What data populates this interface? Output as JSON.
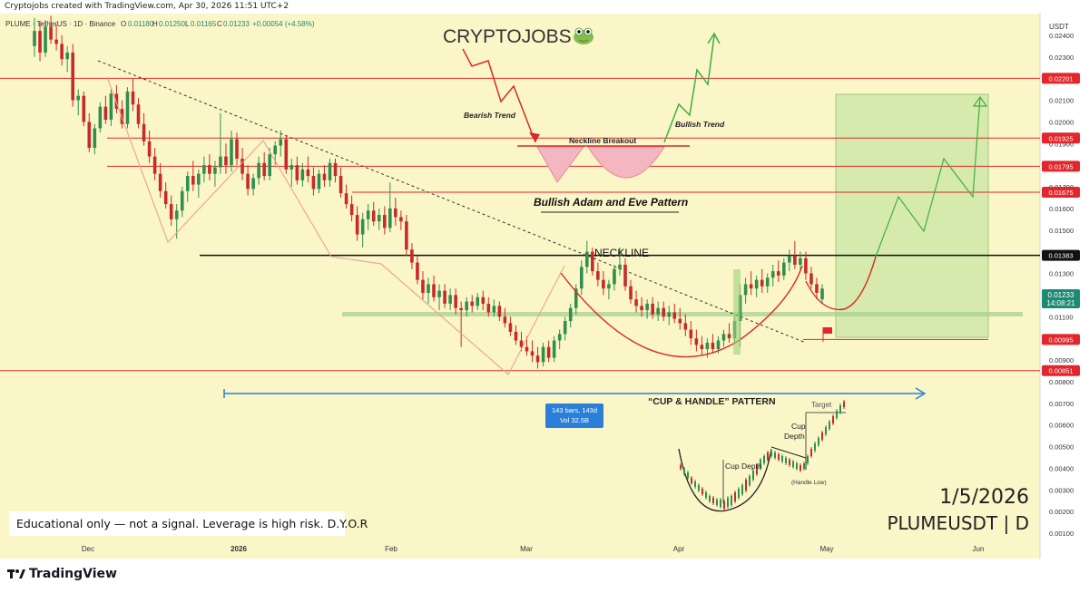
{
  "top_caption": "Cryptojobs created with TradingView.com, Apr 30, 2026 11:51 UTC+2",
  "symbol_line": "PLUME · TetherUS · 1D · Binance",
  "ohlc": {
    "o_label": "O",
    "o": "0.01180",
    "h_label": "H",
    "h": "0.01250",
    "l_label": "L",
    "l": "0.01165",
    "c_label": "C",
    "c": "0.01233",
    "change": "+0.00054 (+4.58%)"
  },
  "currency": "USDT",
  "brand_title": "CRYPTOJOBS",
  "brand_icon": "frog-icon",
  "bottom_date": "1/5/2026",
  "bottom_pair": "PLUMEUSDT | D",
  "disclaimer": "Educational only — not a signal. Leverage is high risk. D.Y.O.R",
  "tradingview_logo": "TradingView",
  "colors": {
    "background": "#fbf6c8",
    "resistance": "#d92a2a",
    "neckline": "#111111",
    "support_band": "#a4cf8c",
    "bull_candle": "#2f8f4f",
    "bear_candle": "#c82a2a",
    "measure": "#2b7fd9",
    "target_box": "#cfe8a8",
    "current_price": "#1d8a73",
    "axis_label_red": "#e2262b"
  },
  "chart_data": {
    "type": "candlestick",
    "symbol": "PLUMEUSDT",
    "timeframe": "1D",
    "x_tick_labels": [
      "Dec",
      "2026",
      "Feb",
      "Mar",
      "Apr",
      "May",
      "Jun"
    ],
    "y_tick_labels": [
      "0.02400",
      "0.02300",
      "0.02200",
      "0.02100",
      "0.02000",
      "0.01900",
      "0.01800",
      "0.01700",
      "0.01600",
      "0.01500",
      "0.01400",
      "0.01300",
      "0.01200",
      "0.01100",
      "0.01000",
      "0.00900",
      "0.00800",
      "0.00700",
      "0.00600",
      "0.00500",
      "0.00400",
      "0.00300",
      "0.00200",
      "0.00100"
    ],
    "ylim": [
      0.0,
      0.025
    ],
    "levels": [
      {
        "label": "0.02201",
        "value": 0.02201,
        "color": "#e2262b"
      },
      {
        "label": "0.01925",
        "value": 0.01925,
        "color": "#e2262b"
      },
      {
        "label": "0.01795",
        "value": 0.01795,
        "color": "#e2262b"
      },
      {
        "label": "0.01675",
        "value": 0.01675,
        "color": "#e2262b"
      },
      {
        "label": "0.01383",
        "value": 0.01383,
        "color": "#111111"
      },
      {
        "label": "0.00995",
        "value": 0.00995,
        "color": "#e2262b"
      },
      {
        "label": "0.00851",
        "value": 0.00851,
        "color": "#e2262b"
      }
    ],
    "current_price": {
      "label": "0.01233",
      "countdown": "14:08:21",
      "value": 0.01233
    },
    "annotations": {
      "bearish_trend": "Bearish Trend",
      "bullish_trend": "Bullish Trend",
      "neckline_breakout": "Neckline Breakout",
      "pattern_name": "Bullish Adam and Eve Pattern",
      "neckline": "NECKLINE",
      "cup_handle": "“CUP & HANDLE” PATTERN",
      "measure_bars": "143 bars, 143d",
      "measure_vol": "Vol 32.5B",
      "inset_cup_depth": "Cup Depth",
      "inset_cup_depth2a": "Cup",
      "inset_cup_depth2b": "Depth",
      "inset_target": "Target",
      "inset_handle_low": "(Handle Low)"
    },
    "candles": [
      {
        "o": 0.0235,
        "h": 0.0248,
        "l": 0.023,
        "c": 0.0242
      },
      {
        "o": 0.0242,
        "h": 0.0246,
        "l": 0.0228,
        "c": 0.0232
      },
      {
        "o": 0.0232,
        "h": 0.0247,
        "l": 0.023,
        "c": 0.0244
      },
      {
        "o": 0.0244,
        "h": 0.0249,
        "l": 0.0236,
        "c": 0.0238
      },
      {
        "o": 0.0238,
        "h": 0.0245,
        "l": 0.0233,
        "c": 0.0236
      },
      {
        "o": 0.0236,
        "h": 0.024,
        "l": 0.0226,
        "c": 0.0229
      },
      {
        "o": 0.0229,
        "h": 0.0235,
        "l": 0.0223,
        "c": 0.0232
      },
      {
        "o": 0.0232,
        "h": 0.0236,
        "l": 0.0207,
        "c": 0.021
      },
      {
        "o": 0.021,
        "h": 0.0215,
        "l": 0.0203,
        "c": 0.0212
      },
      {
        "o": 0.0212,
        "h": 0.0214,
        "l": 0.0198,
        "c": 0.02
      },
      {
        "o": 0.02,
        "h": 0.0204,
        "l": 0.0186,
        "c": 0.0188
      },
      {
        "o": 0.0188,
        "h": 0.0199,
        "l": 0.0185,
        "c": 0.0197
      },
      {
        "o": 0.0197,
        "h": 0.0209,
        "l": 0.0195,
        "c": 0.0207
      },
      {
        "o": 0.0207,
        "h": 0.0212,
        "l": 0.0199,
        "c": 0.0201
      },
      {
        "o": 0.0201,
        "h": 0.0215,
        "l": 0.0198,
        "c": 0.0213
      },
      {
        "o": 0.0213,
        "h": 0.0217,
        "l": 0.0204,
        "c": 0.0206
      },
      {
        "o": 0.0206,
        "h": 0.021,
        "l": 0.0197,
        "c": 0.0199
      },
      {
        "o": 0.0199,
        "h": 0.0216,
        "l": 0.0197,
        "c": 0.0214
      },
      {
        "o": 0.0214,
        "h": 0.022,
        "l": 0.0205,
        "c": 0.0208
      },
      {
        "o": 0.0208,
        "h": 0.0211,
        "l": 0.0197,
        "c": 0.0199
      },
      {
        "o": 0.0199,
        "h": 0.0204,
        "l": 0.0189,
        "c": 0.0191
      },
      {
        "o": 0.0191,
        "h": 0.0196,
        "l": 0.0181,
        "c": 0.0184
      },
      {
        "o": 0.0184,
        "h": 0.0188,
        "l": 0.0173,
        "c": 0.0176
      },
      {
        "o": 0.0176,
        "h": 0.0181,
        "l": 0.0165,
        "c": 0.0168
      },
      {
        "o": 0.0168,
        "h": 0.0172,
        "l": 0.016,
        "c": 0.0162
      },
      {
        "o": 0.0162,
        "h": 0.0166,
        "l": 0.0152,
        "c": 0.0155
      },
      {
        "o": 0.0155,
        "h": 0.0162,
        "l": 0.0146,
        "c": 0.0159
      },
      {
        "o": 0.0159,
        "h": 0.017,
        "l": 0.0156,
        "c": 0.0168
      },
      {
        "o": 0.0168,
        "h": 0.0177,
        "l": 0.0163,
        "c": 0.0175
      },
      {
        "o": 0.0175,
        "h": 0.0182,
        "l": 0.0168,
        "c": 0.0171
      },
      {
        "o": 0.0171,
        "h": 0.0178,
        "l": 0.0165,
        "c": 0.0176
      },
      {
        "o": 0.0176,
        "h": 0.0184,
        "l": 0.0172,
        "c": 0.018
      },
      {
        "o": 0.018,
        "h": 0.0185,
        "l": 0.0173,
        "c": 0.0176
      },
      {
        "o": 0.0176,
        "h": 0.0182,
        "l": 0.017,
        "c": 0.0179
      },
      {
        "o": 0.0179,
        "h": 0.0204,
        "l": 0.0176,
        "c": 0.0184
      },
      {
        "o": 0.0184,
        "h": 0.019,
        "l": 0.0176,
        "c": 0.018
      },
      {
        "o": 0.018,
        "h": 0.0196,
        "l": 0.0177,
        "c": 0.0192
      },
      {
        "o": 0.0192,
        "h": 0.0195,
        "l": 0.018,
        "c": 0.0183
      },
      {
        "o": 0.0183,
        "h": 0.0188,
        "l": 0.0173,
        "c": 0.0176
      },
      {
        "o": 0.0176,
        "h": 0.018,
        "l": 0.0166,
        "c": 0.0169
      },
      {
        "o": 0.0169,
        "h": 0.0176,
        "l": 0.0166,
        "c": 0.0174
      },
      {
        "o": 0.0174,
        "h": 0.0184,
        "l": 0.0171,
        "c": 0.0181
      },
      {
        "o": 0.0181,
        "h": 0.0186,
        "l": 0.0173,
        "c": 0.0175
      },
      {
        "o": 0.0175,
        "h": 0.0188,
        "l": 0.0173,
        "c": 0.0185
      },
      {
        "o": 0.0185,
        "h": 0.0191,
        "l": 0.018,
        "c": 0.0189
      },
      {
        "o": 0.0189,
        "h": 0.0196,
        "l": 0.0184,
        "c": 0.0192
      },
      {
        "o": 0.0192,
        "h": 0.0194,
        "l": 0.0176,
        "c": 0.0178
      },
      {
        "o": 0.0178,
        "h": 0.0183,
        "l": 0.017,
        "c": 0.018
      },
      {
        "o": 0.018,
        "h": 0.0184,
        "l": 0.0171,
        "c": 0.0173
      },
      {
        "o": 0.0173,
        "h": 0.0181,
        "l": 0.017,
        "c": 0.0178
      },
      {
        "o": 0.0178,
        "h": 0.0184,
        "l": 0.0172,
        "c": 0.0175
      },
      {
        "o": 0.0175,
        "h": 0.0179,
        "l": 0.0166,
        "c": 0.0169
      },
      {
        "o": 0.0169,
        "h": 0.0178,
        "l": 0.0167,
        "c": 0.0176
      },
      {
        "o": 0.0176,
        "h": 0.018,
        "l": 0.017,
        "c": 0.0173
      },
      {
        "o": 0.0173,
        "h": 0.0183,
        "l": 0.017,
        "c": 0.0181
      },
      {
        "o": 0.0181,
        "h": 0.0183,
        "l": 0.0172,
        "c": 0.0175
      },
      {
        "o": 0.0175,
        "h": 0.0179,
        "l": 0.0165,
        "c": 0.0167
      },
      {
        "o": 0.0167,
        "h": 0.0171,
        "l": 0.016,
        "c": 0.0162
      },
      {
        "o": 0.0162,
        "h": 0.0166,
        "l": 0.0154,
        "c": 0.0157
      },
      {
        "o": 0.0157,
        "h": 0.0161,
        "l": 0.0145,
        "c": 0.0148
      },
      {
        "o": 0.0148,
        "h": 0.0158,
        "l": 0.0142,
        "c": 0.0155
      },
      {
        "o": 0.0155,
        "h": 0.0162,
        "l": 0.015,
        "c": 0.0159
      },
      {
        "o": 0.0159,
        "h": 0.0163,
        "l": 0.0152,
        "c": 0.0154
      },
      {
        "o": 0.0154,
        "h": 0.016,
        "l": 0.015,
        "c": 0.0157
      },
      {
        "o": 0.0157,
        "h": 0.0161,
        "l": 0.0148,
        "c": 0.0151
      },
      {
        "o": 0.0151,
        "h": 0.0172,
        "l": 0.0149,
        "c": 0.016
      },
      {
        "o": 0.016,
        "h": 0.0165,
        "l": 0.0152,
        "c": 0.0156
      },
      {
        "o": 0.0156,
        "h": 0.0159,
        "l": 0.015,
        "c": 0.0154
      },
      {
        "o": 0.0154,
        "h": 0.0157,
        "l": 0.0138,
        "c": 0.0141
      },
      {
        "o": 0.0141,
        "h": 0.0144,
        "l": 0.0132,
        "c": 0.0135
      },
      {
        "o": 0.0135,
        "h": 0.0138,
        "l": 0.0125,
        "c": 0.0127
      },
      {
        "o": 0.0127,
        "h": 0.0131,
        "l": 0.0118,
        "c": 0.0121
      },
      {
        "o": 0.0121,
        "h": 0.0128,
        "l": 0.0116,
        "c": 0.0125
      },
      {
        "o": 0.0125,
        "h": 0.0129,
        "l": 0.0117,
        "c": 0.0119
      },
      {
        "o": 0.0119,
        "h": 0.0125,
        "l": 0.0113,
        "c": 0.0122
      },
      {
        "o": 0.0122,
        "h": 0.0125,
        "l": 0.0114,
        "c": 0.0116
      },
      {
        "o": 0.0116,
        "h": 0.0123,
        "l": 0.0113,
        "c": 0.012
      },
      {
        "o": 0.012,
        "h": 0.0123,
        "l": 0.0111,
        "c": 0.0114
      },
      {
        "o": 0.0114,
        "h": 0.0117,
        "l": 0.0096,
        "c": 0.0113
      },
      {
        "o": 0.0113,
        "h": 0.0119,
        "l": 0.011,
        "c": 0.0117
      },
      {
        "o": 0.0117,
        "h": 0.012,
        "l": 0.0112,
        "c": 0.0115
      },
      {
        "o": 0.0115,
        "h": 0.0121,
        "l": 0.0113,
        "c": 0.0119
      },
      {
        "o": 0.0119,
        "h": 0.0122,
        "l": 0.0113,
        "c": 0.0116
      },
      {
        "o": 0.0116,
        "h": 0.0119,
        "l": 0.011,
        "c": 0.0112
      },
      {
        "o": 0.0112,
        "h": 0.0118,
        "l": 0.011,
        "c": 0.0115
      },
      {
        "o": 0.0115,
        "h": 0.0117,
        "l": 0.0108,
        "c": 0.011
      },
      {
        "o": 0.011,
        "h": 0.0114,
        "l": 0.0105,
        "c": 0.0107
      },
      {
        "o": 0.0107,
        "h": 0.011,
        "l": 0.0101,
        "c": 0.0103
      },
      {
        "o": 0.0103,
        "h": 0.0106,
        "l": 0.0097,
        "c": 0.0099
      },
      {
        "o": 0.0099,
        "h": 0.0103,
        "l": 0.0094,
        "c": 0.0096
      },
      {
        "o": 0.0096,
        "h": 0.0101,
        "l": 0.0092,
        "c": 0.0094
      },
      {
        "o": 0.0094,
        "h": 0.0099,
        "l": 0.0089,
        "c": 0.0092
      },
      {
        "o": 0.0092,
        "h": 0.0096,
        "l": 0.0086,
        "c": 0.0089
      },
      {
        "o": 0.0089,
        "h": 0.0098,
        "l": 0.0087,
        "c": 0.0096
      },
      {
        "o": 0.0096,
        "h": 0.0099,
        "l": 0.0089,
        "c": 0.0091
      },
      {
        "o": 0.0091,
        "h": 0.0101,
        "l": 0.0089,
        "c": 0.0099
      },
      {
        "o": 0.0099,
        "h": 0.0104,
        "l": 0.0095,
        "c": 0.0102
      },
      {
        "o": 0.0102,
        "h": 0.011,
        "l": 0.0099,
        "c": 0.0108
      },
      {
        "o": 0.0108,
        "h": 0.0116,
        "l": 0.0105,
        "c": 0.0114
      },
      {
        "o": 0.0114,
        "h": 0.0125,
        "l": 0.0111,
        "c": 0.0123
      },
      {
        "o": 0.0123,
        "h": 0.0136,
        "l": 0.012,
        "c": 0.0133
      },
      {
        "o": 0.0133,
        "h": 0.0145,
        "l": 0.013,
        "c": 0.014
      },
      {
        "o": 0.014,
        "h": 0.0142,
        "l": 0.0129,
        "c": 0.0131
      },
      {
        "o": 0.0131,
        "h": 0.0135,
        "l": 0.0124,
        "c": 0.0127
      },
      {
        "o": 0.0127,
        "h": 0.0131,
        "l": 0.012,
        "c": 0.0123
      },
      {
        "o": 0.0123,
        "h": 0.0127,
        "l": 0.0118,
        "c": 0.0125
      },
      {
        "o": 0.0125,
        "h": 0.0134,
        "l": 0.0122,
        "c": 0.0132
      },
      {
        "o": 0.0132,
        "h": 0.0142,
        "l": 0.0129,
        "c": 0.0134
      },
      {
        "o": 0.0134,
        "h": 0.0137,
        "l": 0.0122,
        "c": 0.0124
      },
      {
        "o": 0.0124,
        "h": 0.0127,
        "l": 0.0116,
        "c": 0.0118
      },
      {
        "o": 0.0118,
        "h": 0.0122,
        "l": 0.0112,
        "c": 0.0115
      },
      {
        "o": 0.0115,
        "h": 0.0119,
        "l": 0.011,
        "c": 0.0113
      },
      {
        "o": 0.0113,
        "h": 0.0118,
        "l": 0.0109,
        "c": 0.0116
      },
      {
        "o": 0.0116,
        "h": 0.0119,
        "l": 0.0109,
        "c": 0.0111
      },
      {
        "o": 0.0111,
        "h": 0.0117,
        "l": 0.0108,
        "c": 0.0114
      },
      {
        "o": 0.0114,
        "h": 0.0117,
        "l": 0.0108,
        "c": 0.011
      },
      {
        "o": 0.011,
        "h": 0.0115,
        "l": 0.0106,
        "c": 0.0112
      },
      {
        "o": 0.0112,
        "h": 0.0116,
        "l": 0.0107,
        "c": 0.0109
      },
      {
        "o": 0.0109,
        "h": 0.0114,
        "l": 0.0104,
        "c": 0.0107
      },
      {
        "o": 0.0107,
        "h": 0.0111,
        "l": 0.0101,
        "c": 0.0104
      },
      {
        "o": 0.0104,
        "h": 0.0108,
        "l": 0.0097,
        "c": 0.01
      },
      {
        "o": 0.01,
        "h": 0.0104,
        "l": 0.0094,
        "c": 0.0097
      },
      {
        "o": 0.0097,
        "h": 0.0101,
        "l": 0.0092,
        "c": 0.0095
      },
      {
        "o": 0.0095,
        "h": 0.01,
        "l": 0.0091,
        "c": 0.0098
      },
      {
        "o": 0.0098,
        "h": 0.0102,
        "l": 0.0093,
        "c": 0.0095
      },
      {
        "o": 0.0095,
        "h": 0.0101,
        "l": 0.0093,
        "c": 0.0099
      },
      {
        "o": 0.0099,
        "h": 0.0104,
        "l": 0.0096,
        "c": 0.0102
      },
      {
        "o": 0.0102,
        "h": 0.0107,
        "l": 0.0098,
        "c": 0.01
      },
      {
        "o": 0.01,
        "h": 0.011,
        "l": 0.0098,
        "c": 0.0108
      },
      {
        "o": 0.0108,
        "h": 0.0125,
        "l": 0.0096,
        "c": 0.012
      },
      {
        "o": 0.012,
        "h": 0.0128,
        "l": 0.0116,
        "c": 0.0125
      },
      {
        "o": 0.0125,
        "h": 0.0131,
        "l": 0.012,
        "c": 0.0123
      },
      {
        "o": 0.0123,
        "h": 0.0129,
        "l": 0.0119,
        "c": 0.0127
      },
      {
        "o": 0.0127,
        "h": 0.0132,
        "l": 0.0121,
        "c": 0.0124
      },
      {
        "o": 0.0124,
        "h": 0.013,
        "l": 0.0121,
        "c": 0.0128
      },
      {
        "o": 0.0128,
        "h": 0.0134,
        "l": 0.0124,
        "c": 0.0131
      },
      {
        "o": 0.0131,
        "h": 0.0136,
        "l": 0.0126,
        "c": 0.0129
      },
      {
        "o": 0.0129,
        "h": 0.0137,
        "l": 0.0127,
        "c": 0.0135
      },
      {
        "o": 0.0135,
        "h": 0.0141,
        "l": 0.0131,
        "c": 0.0138
      },
      {
        "o": 0.0138,
        "h": 0.0145,
        "l": 0.0132,
        "c": 0.0134
      },
      {
        "o": 0.0134,
        "h": 0.014,
        "l": 0.0131,
        "c": 0.0137
      },
      {
        "o": 0.0137,
        "h": 0.014,
        "l": 0.0127,
        "c": 0.013
      },
      {
        "o": 0.013,
        "h": 0.0133,
        "l": 0.0123,
        "c": 0.0125
      },
      {
        "o": 0.0125,
        "h": 0.0128,
        "l": 0.0118,
        "c": 0.0121
      },
      {
        "o": 0.0118,
        "h": 0.0125,
        "l": 0.0116,
        "c": 0.0123
      }
    ]
  }
}
